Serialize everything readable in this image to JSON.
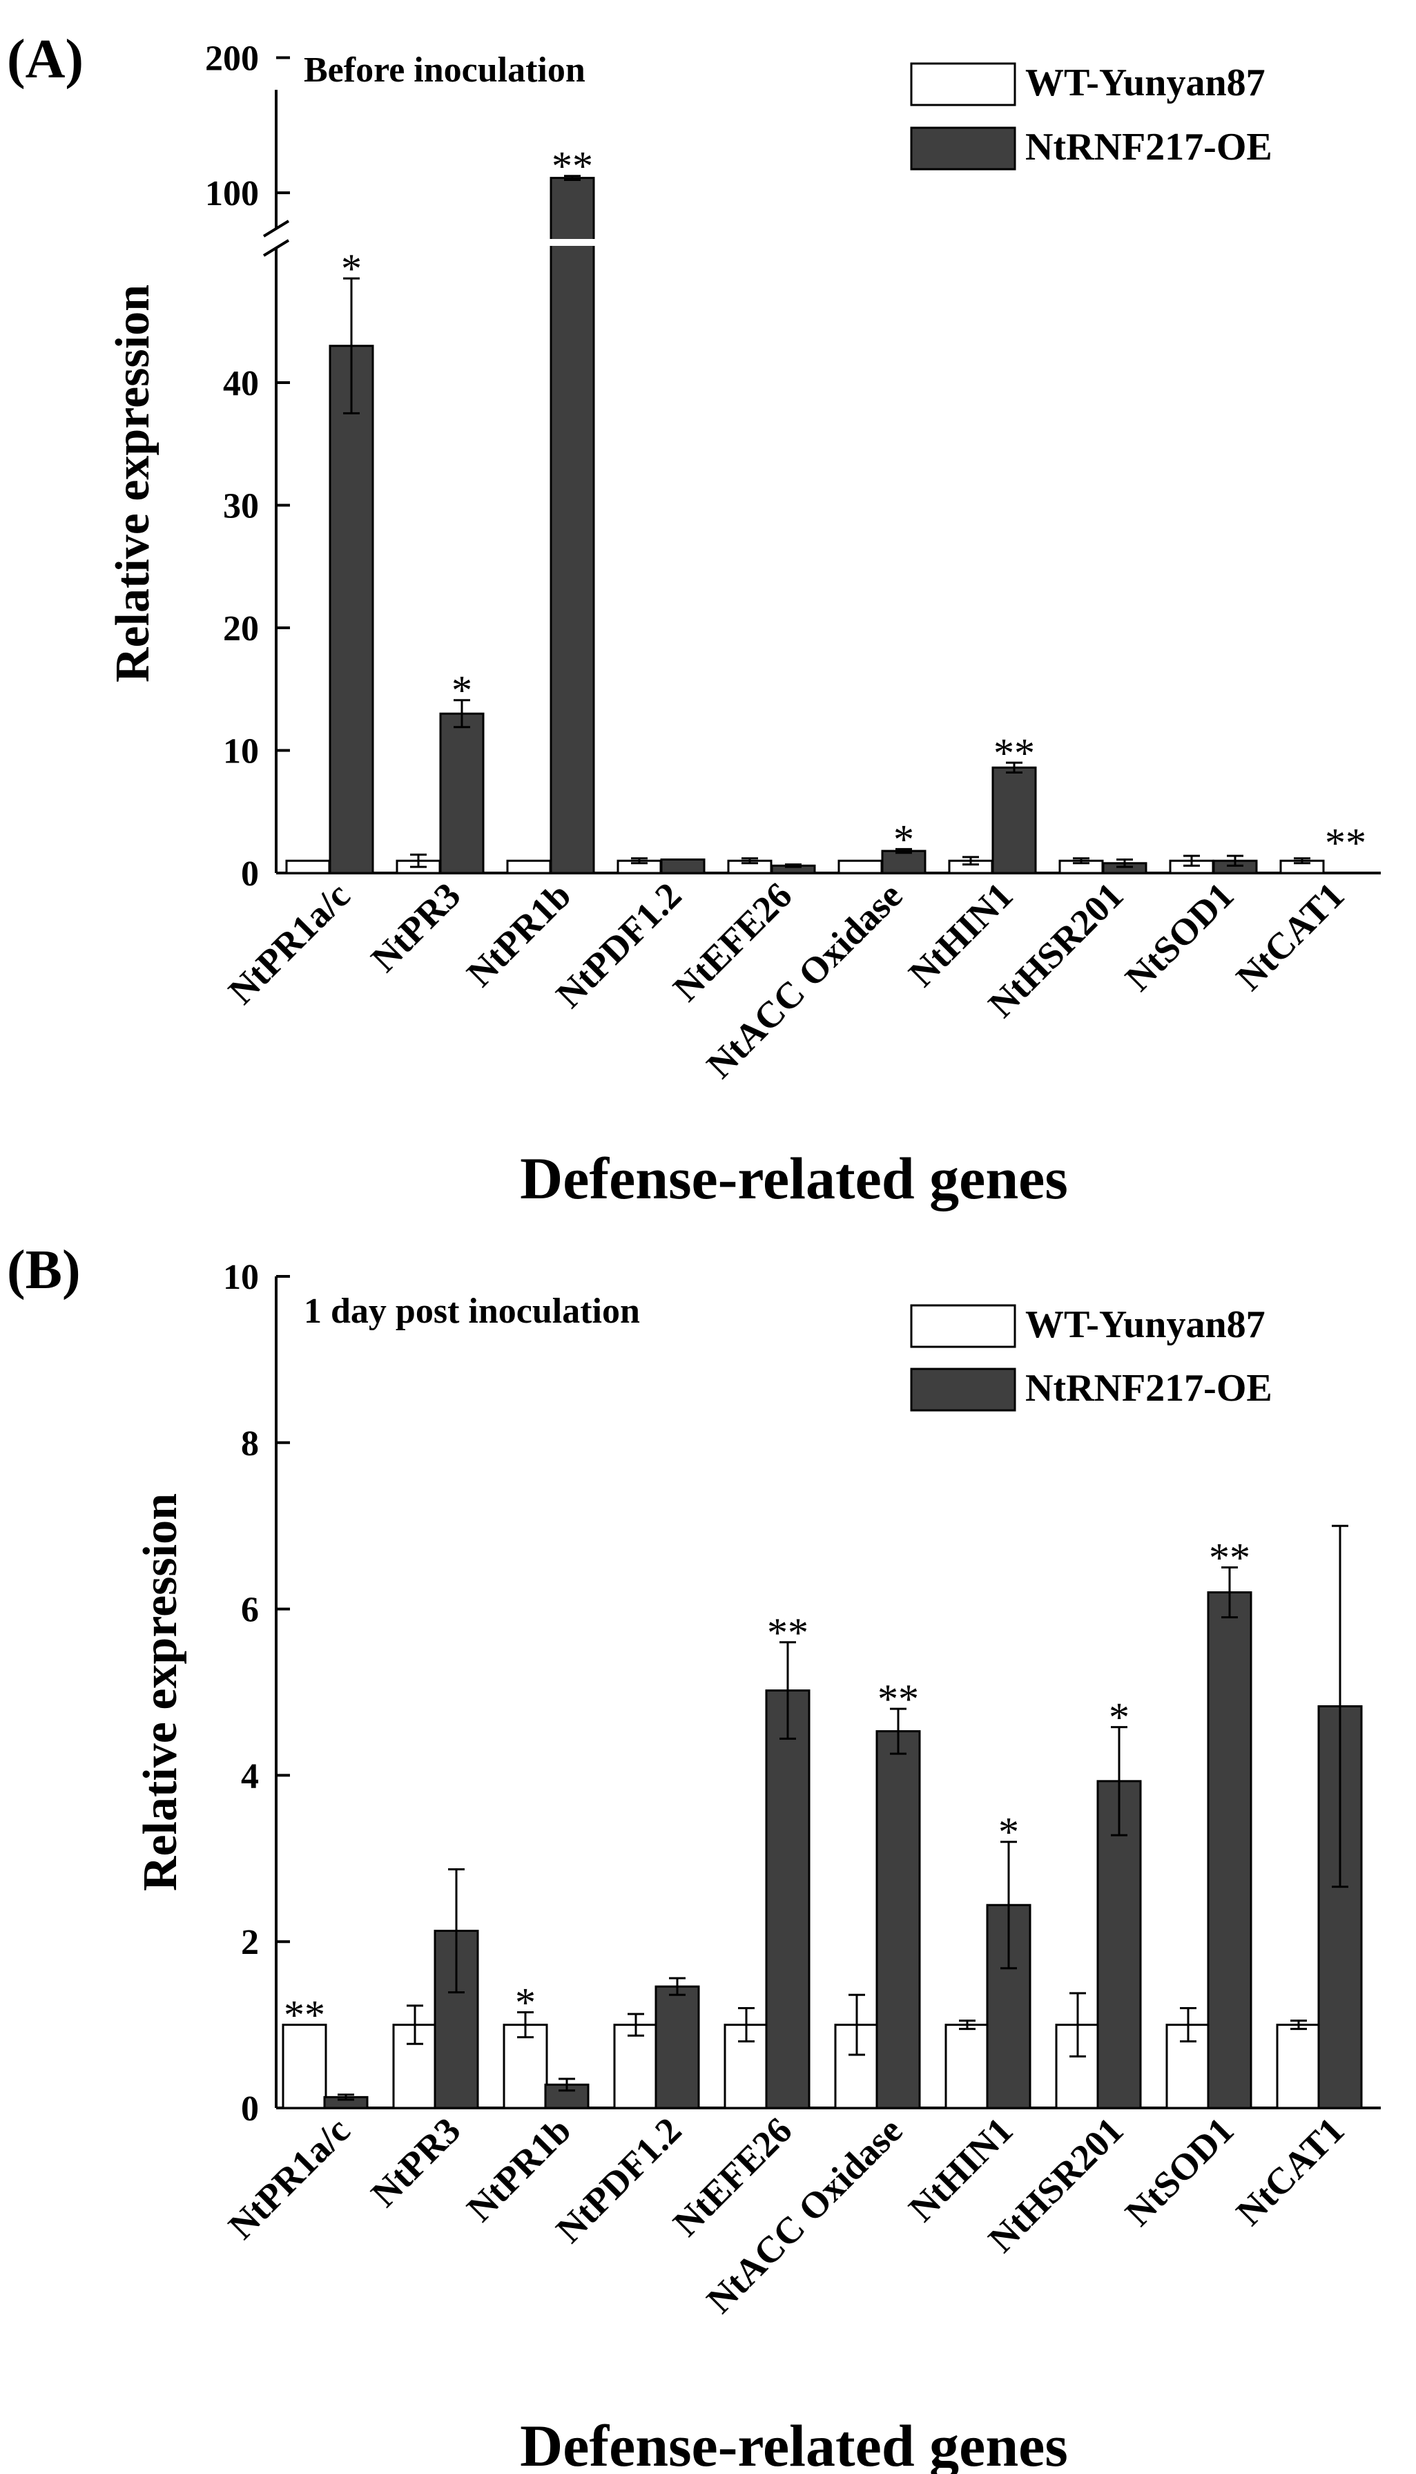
{
  "colors": {
    "wt": "#ffffff",
    "oe": "#3f3f3f",
    "axis": "#000000",
    "sig": "#000000"
  },
  "chart_data": [
    {
      "type": "bar",
      "panel_label": "(A)",
      "annotation": "Before inoculation",
      "ylabel": "Relative expression",
      "xlabel": "Defense-related genes",
      "axis_break": {
        "lower": [
          0,
          50
        ],
        "upper": [
          50,
          200
        ]
      },
      "yticks": [
        0,
        10,
        20,
        30,
        40,
        100,
        200
      ],
      "legend_position": "top-right",
      "categories": [
        "NtPR1a/c",
        "NtPR3",
        "NtPR1b",
        "NtPDF1.2",
        "NtEFE26",
        "NtACC Oxidase",
        "NtHIN1",
        "NtHSR201",
        "NtSOD1",
        "NtCAT1"
      ],
      "series": [
        {
          "name": "WT-Yunyan87",
          "values": [
            1,
            1,
            1,
            1,
            1,
            1,
            1,
            1,
            1,
            1
          ],
          "errors": [
            0,
            0.5,
            0,
            0.2,
            0.2,
            0,
            0.3,
            0.2,
            0.4,
            0.2
          ],
          "significance": [
            "",
            "",
            "",
            "",
            "",
            "",
            "",
            "",
            "",
            ""
          ]
        },
        {
          "name": "NtRNF217-OE",
          "values": [
            43,
            13,
            111,
            1.1,
            0.6,
            1.8,
            8.6,
            0.8,
            1,
            0
          ],
          "errors": [
            5.5,
            1.1,
            1.5,
            0,
            0.1,
            0.15,
            0.4,
            0.3,
            0.4,
            0
          ],
          "significance": [
            "*",
            "*",
            "**",
            "",
            "",
            "*",
            "**",
            "",
            "",
            ""
          ]
        }
      ],
      "extra_marks": [
        {
          "category": "NtCAT1",
          "text": "**"
        }
      ]
    },
    {
      "type": "bar",
      "panel_label": "(B)",
      "annotation": "1 day post inoculation",
      "ylabel": "Relative expression",
      "xlabel": "Defense-related genes",
      "ylim": [
        0,
        10
      ],
      "yticks": [
        0,
        2,
        4,
        6,
        8,
        10
      ],
      "legend_position": "top-right",
      "categories": [
        "NtPR1a/c",
        "NtPR3",
        "NtPR1b",
        "NtPDF1.2",
        "NtEFE26",
        "NtACC Oxidase",
        "NtHIN1",
        "NtHSR201",
        "NtSOD1",
        "NtCAT1"
      ],
      "series": [
        {
          "name": "WT-Yunyan87",
          "values": [
            1,
            1,
            1,
            1,
            1,
            1,
            1,
            1,
            1,
            1
          ],
          "errors": [
            0,
            0.23,
            0.15,
            0.13,
            0.2,
            0.36,
            0.05,
            0.38,
            0.2,
            0.05
          ],
          "significance": [
            "**",
            "",
            "*",
            "",
            "",
            "",
            "",
            "",
            "",
            ""
          ]
        },
        {
          "name": "NtRNF217-OE",
          "values": [
            0.13,
            2.13,
            0.28,
            1.46,
            5.02,
            4.53,
            2.44,
            3.93,
            6.2,
            4.83
          ],
          "errors": [
            0.03,
            0.74,
            0.07,
            0.1,
            0.58,
            0.27,
            0.76,
            0.65,
            0.3,
            2.17
          ],
          "significance": [
            "",
            "",
            "",
            "",
            "**",
            "**",
            "*",
            "*",
            "**",
            ""
          ]
        }
      ]
    }
  ]
}
